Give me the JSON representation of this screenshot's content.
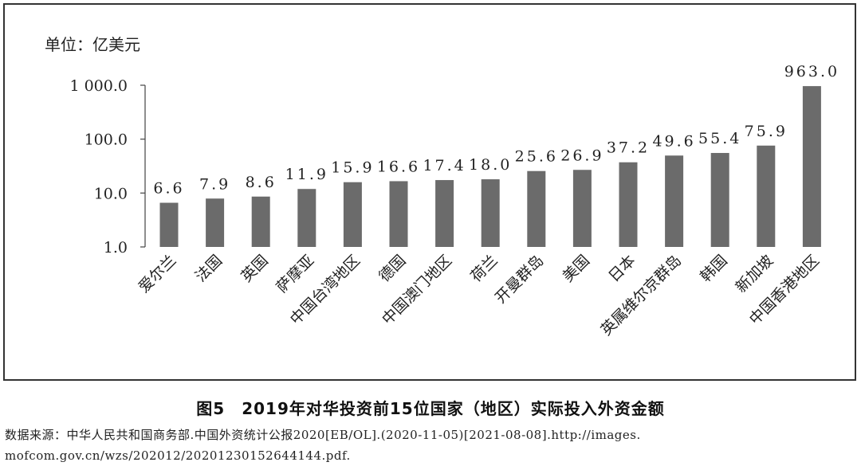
{
  "chart_data": {
    "type": "bar",
    "unit_label": "单位：亿美元",
    "categories": [
      "爱尔兰",
      "法国",
      "英国",
      "萨摩亚",
      "中国台湾地区",
      "德国",
      "中国澳门地区",
      "荷兰",
      "开曼群岛",
      "美国",
      "日本",
      "英属维尔京群岛",
      "韩国",
      "新加坡",
      "中国香港地区"
    ],
    "values": [
      6.6,
      7.9,
      8.6,
      11.9,
      15.9,
      16.6,
      17.4,
      18.0,
      25.6,
      26.9,
      37.2,
      49.6,
      55.4,
      75.9,
      963.0
    ],
    "value_labels": [
      "6.6",
      "7.9",
      "8.6",
      "11.9",
      "15.9",
      "16.6",
      "17.4",
      "18.0",
      "25.6",
      "26.9",
      "37.2",
      "49.6",
      "55.4",
      "75.9",
      "963.0"
    ],
    "y_scale": "log",
    "ylim": [
      1,
      1000
    ],
    "y_ticks": [
      1,
      10,
      100,
      1000
    ],
    "y_tick_labels": [
      "1.0",
      "10.0",
      "100.0",
      "1 000.0"
    ],
    "bar_color": "#6b6b6b",
    "grid": false,
    "legend": "none"
  },
  "caption": "图5　2019年对华投资前15位国家（地区）实际投入外资金额",
  "source_line1": "数据来源：中华人民共和国商务部.中国外资统计公报2020[EB/OL].(2020-11-05)[2021-08-08].http://images.",
  "source_line2": "mofcom.gov.cn/wzs/202012/20201230152644144.pdf."
}
